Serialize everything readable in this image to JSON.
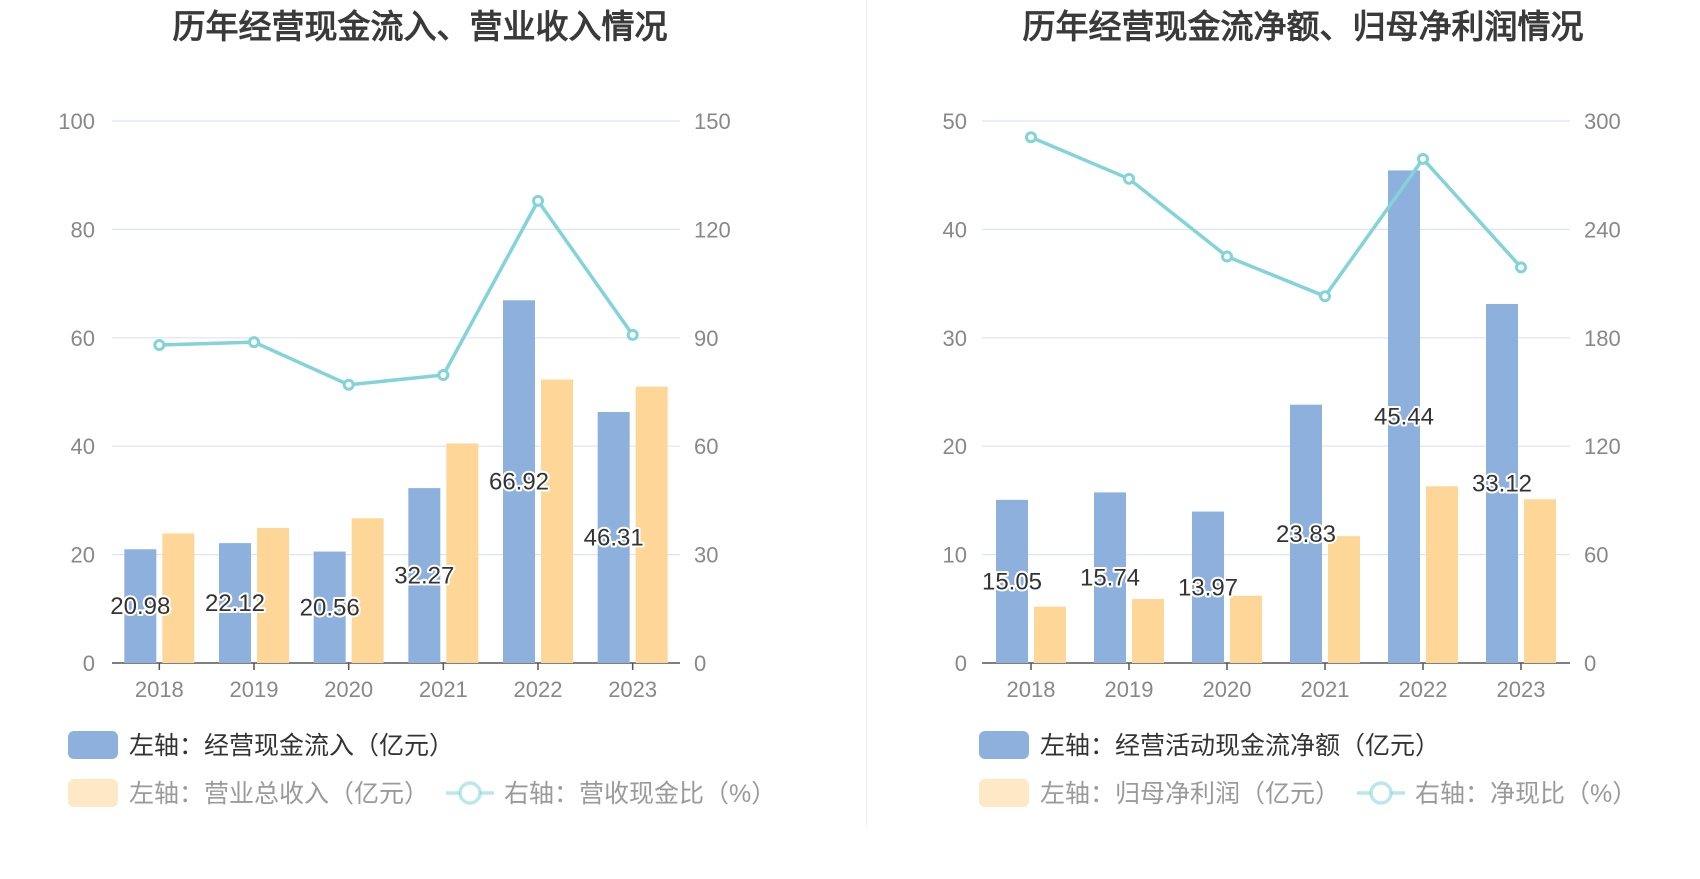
{
  "chart_data": [
    {
      "type": "bar",
      "title": "历年经营现金流入、营业收入情况",
      "categories": [
        "2018",
        "2019",
        "2020",
        "2021",
        "2022",
        "2023"
      ],
      "left_axis": {
        "ticks": [
          "0",
          "20",
          "40",
          "60",
          "80",
          "100"
        ],
        "ylim": [
          0,
          100
        ]
      },
      "right_axis": {
        "ticks": [
          "0",
          "30",
          "60",
          "90",
          "120",
          "150"
        ],
        "ylim": [
          0,
          150
        ]
      },
      "series": [
        {
          "name": "左轴：经营现金流入（亿元）",
          "type": "bar",
          "axis": "left",
          "color": "#8eb0dd",
          "values": [
            20.98,
            22.12,
            20.56,
            32.27,
            66.92,
            46.31
          ],
          "labels": [
            "20.98",
            "22.12",
            "20.56",
            "32.27",
            "66.92",
            "46.31"
          ]
        },
        {
          "name": "左轴：营业总收入（亿元）",
          "type": "bar",
          "axis": "left",
          "color": "#fed697",
          "values": [
            23.9,
            24.9,
            26.7,
            40.5,
            52.3,
            51.0
          ]
        },
        {
          "name": "右轴：营收现金比（%）",
          "type": "line",
          "axis": "right",
          "color": "#82d4d8",
          "values": [
            88.0,
            88.8,
            77.0,
            79.7,
            127.9,
            90.8
          ]
        }
      ]
    },
    {
      "type": "bar",
      "title": "历年经营现金流净额、归母净利润情况",
      "categories": [
        "2018",
        "2019",
        "2020",
        "2021",
        "2022",
        "2023"
      ],
      "left_axis": {
        "ticks": [
          "0",
          "10",
          "20",
          "30",
          "40",
          "50"
        ],
        "ylim": [
          0,
          50
        ]
      },
      "right_axis": {
        "ticks": [
          "0",
          "60",
          "120",
          "180",
          "240",
          "300"
        ],
        "ylim": [
          0,
          300
        ]
      },
      "series": [
        {
          "name": "左轴：经营活动现金流净额（亿元）",
          "type": "bar",
          "axis": "left",
          "color": "#8eb0dd",
          "values": [
            15.05,
            15.74,
            13.97,
            23.83,
            45.44,
            33.12
          ],
          "labels": [
            "15.05",
            "15.74",
            "13.97",
            "23.83",
            "45.44",
            "33.12"
          ]
        },
        {
          "name": "左轴：归母净利润（亿元）",
          "type": "bar",
          "axis": "left",
          "color": "#fed697",
          "values": [
            5.2,
            5.9,
            6.2,
            11.7,
            16.3,
            15.1
          ]
        },
        {
          "name": "右轴：净现比（%）",
          "type": "line",
          "axis": "right",
          "color": "#82d4d8",
          "values": [
            291.0,
            268.0,
            225.0,
            203.0,
            279.0,
            219.0
          ]
        }
      ]
    }
  ]
}
